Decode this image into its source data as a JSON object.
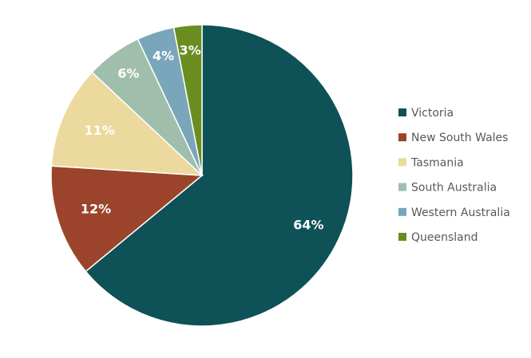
{
  "chart_data": {
    "type": "pie",
    "categories": [
      "Victoria",
      "New South Wales",
      "Tasmania",
      "South Australia",
      "Western Australia",
      "Queensland"
    ],
    "values": [
      64,
      12,
      11,
      6,
      4,
      3
    ],
    "data_labels": [
      "64%",
      "12%",
      "11%",
      "6%",
      "4%",
      "3%"
    ],
    "colors": [
      "#0e5156",
      "#9b442b",
      "#ecd99d",
      "#9fbfac",
      "#7aa6bb",
      "#6a8d20"
    ],
    "title": "",
    "legend_position": "right",
    "start_angle": "12 o'clock",
    "direction": "clockwise"
  }
}
